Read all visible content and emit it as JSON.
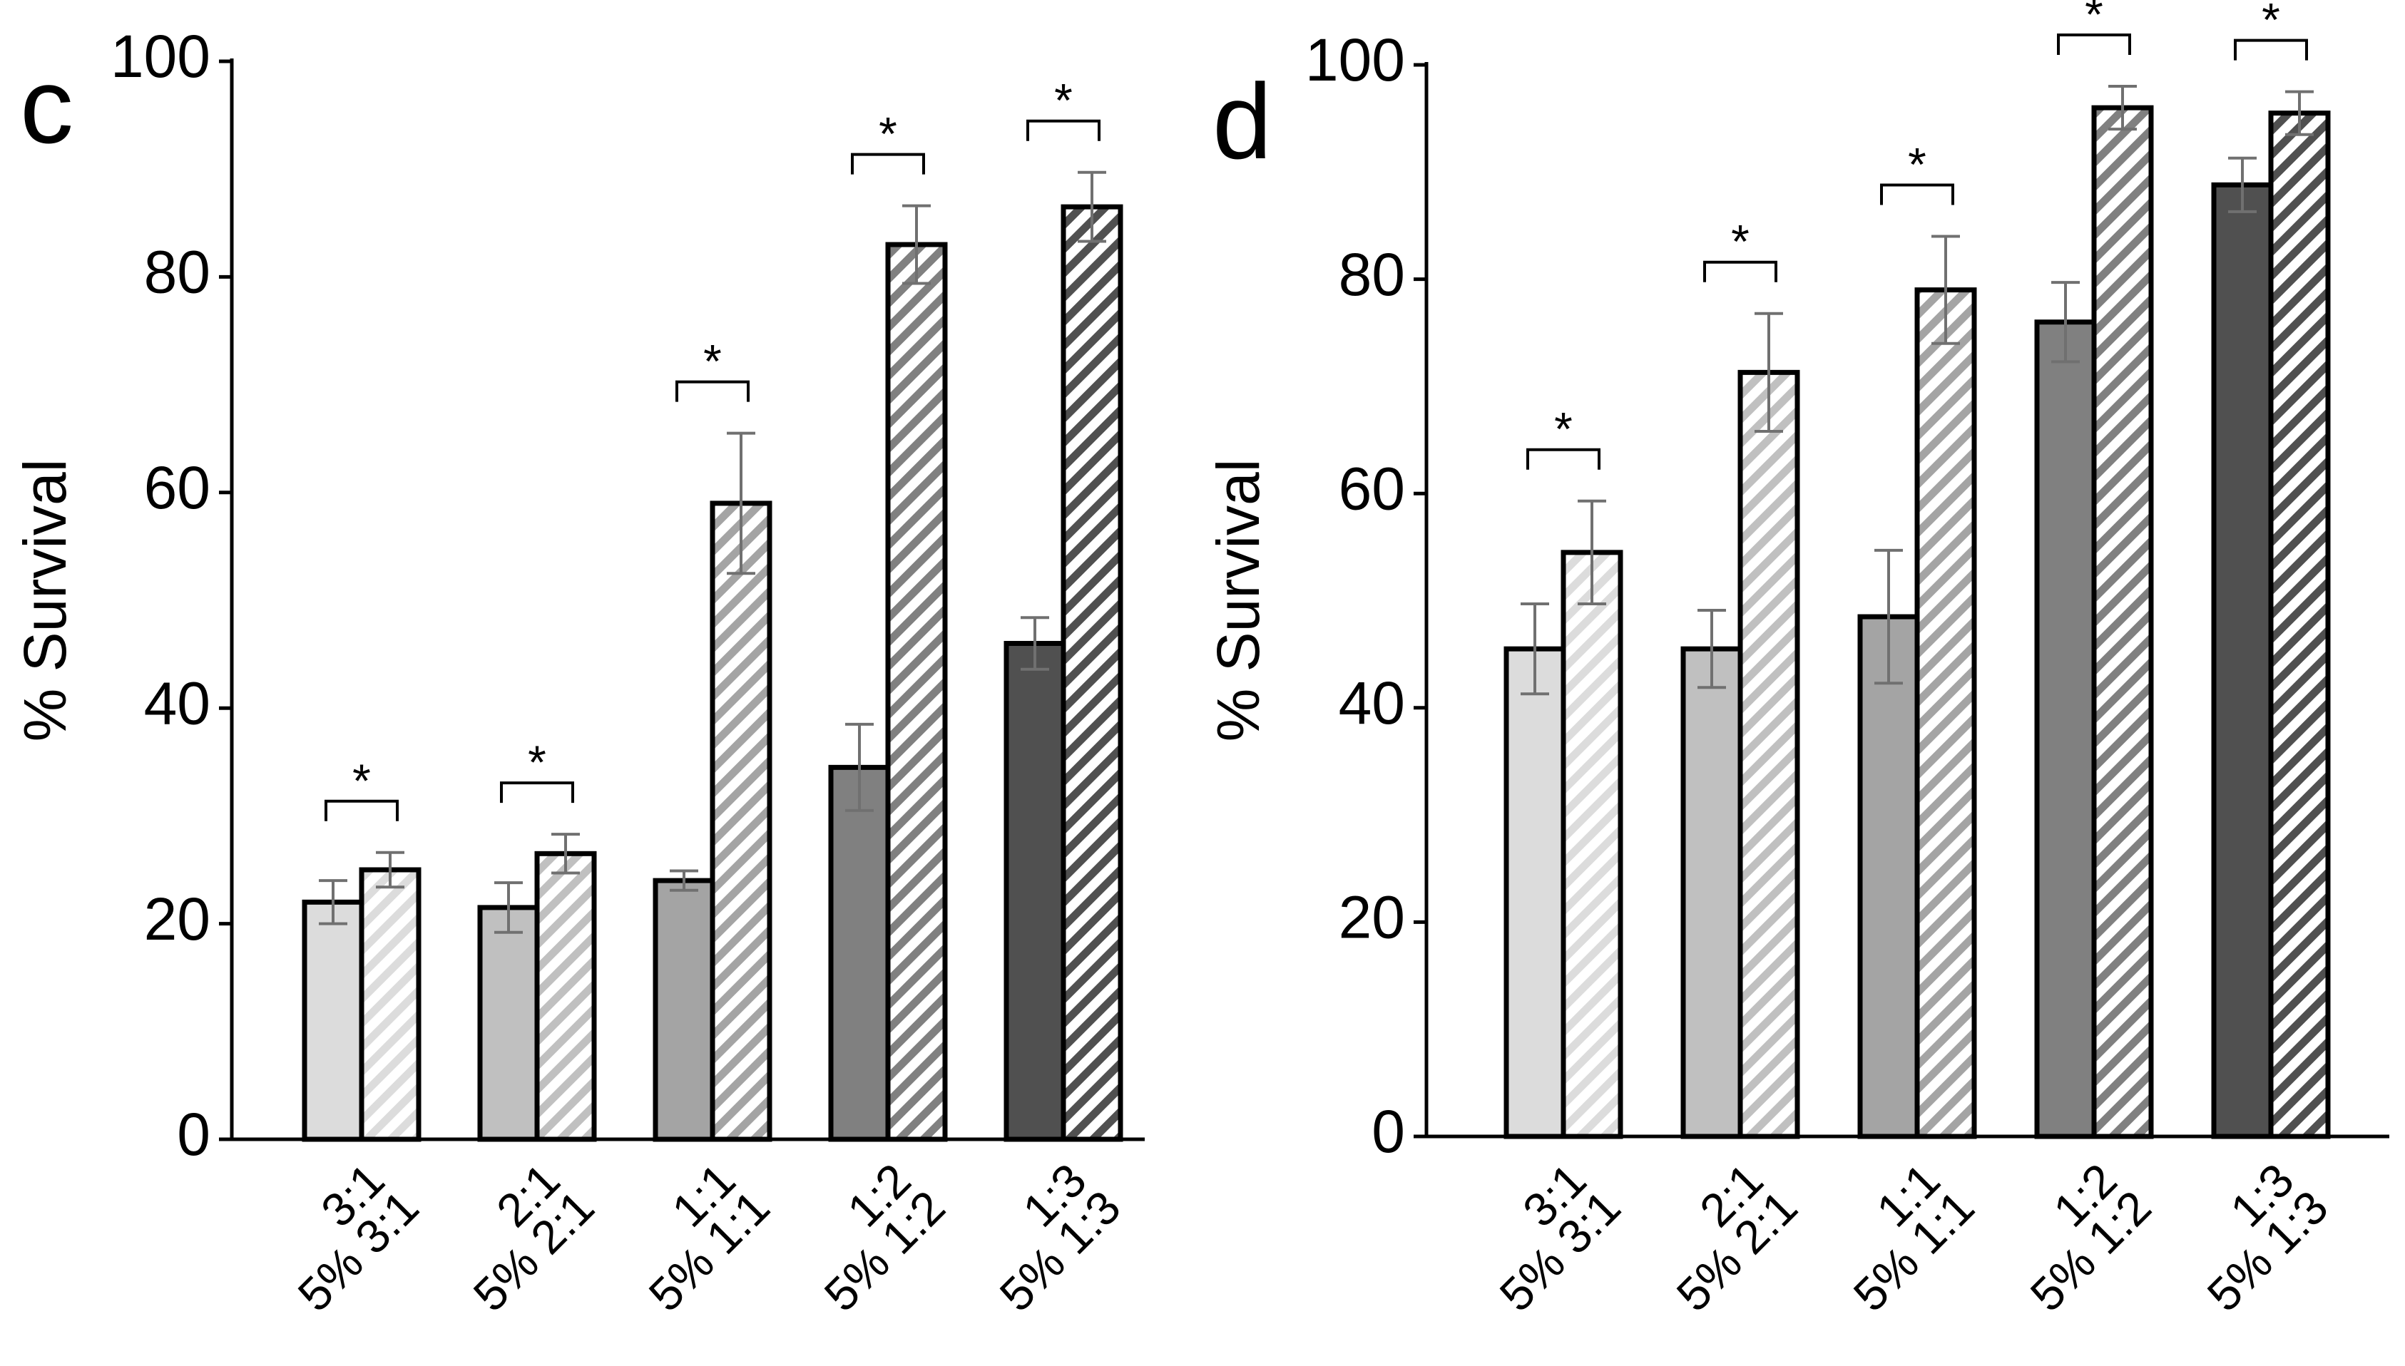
{
  "colors": {
    "c1": "#dcdcdc",
    "c2": "#c0c0c0",
    "c3": "#a4a4a4",
    "c4": "#808080",
    "c5": "#505050",
    "error": "#707070",
    "axis": "#000000"
  },
  "chart_data": [
    {
      "panel_label": "c",
      "type": "bar",
      "ylabel": "% Survival",
      "ylim": [
        0,
        100
      ],
      "yticks": [
        0,
        20,
        40,
        60,
        80,
        100
      ],
      "ytick_labels": [
        "0",
        "20",
        "40",
        "60",
        "80",
        "100"
      ],
      "groups": [
        {
          "name": "3:1",
          "color": "c1",
          "solid": {
            "label": "3:1",
            "value": 22,
            "error": 2
          },
          "hatched": {
            "label": "5% 3:1",
            "value": 25,
            "error": 1.6
          },
          "sig": "*"
        },
        {
          "name": "2:1",
          "color": "c2",
          "solid": {
            "label": "2:1",
            "value": 21.5,
            "error": 2.3
          },
          "hatched": {
            "label": "5% 2:1",
            "value": 26.5,
            "error": 1.8
          },
          "sig": "*"
        },
        {
          "name": "1:1",
          "color": "c3",
          "solid": {
            "label": "1:1",
            "value": 24,
            "error": 0.9
          },
          "hatched": {
            "label": "5% 1:1",
            "value": 59,
            "error": 6.5
          },
          "sig": "*"
        },
        {
          "name": "1:2",
          "color": "c4",
          "solid": {
            "label": "1:2",
            "value": 34.5,
            "error": 4
          },
          "hatched": {
            "label": "5% 1:2",
            "value": 83,
            "error": 3.6
          },
          "sig": "*"
        },
        {
          "name": "1:3",
          "color": "c5",
          "solid": {
            "label": "1:3",
            "value": 46,
            "error": 2.4
          },
          "hatched": {
            "label": "5% 1:3",
            "value": 86.5,
            "error": 3.2
          },
          "sig": "*"
        }
      ]
    },
    {
      "panel_label": "d",
      "type": "bar",
      "ylabel": "% Survival",
      "ylim": [
        0,
        100
      ],
      "yticks": [
        0,
        20,
        40,
        60,
        80,
        100
      ],
      "ytick_labels": [
        "0",
        "20",
        "40",
        "60",
        "80",
        "100"
      ],
      "groups": [
        {
          "name": "3:1",
          "color": "c1",
          "solid": {
            "label": "3:1",
            "value": 45.5,
            "error": 4.2
          },
          "hatched": {
            "label": "5% 3:1",
            "value": 54.5,
            "error": 4.8
          },
          "sig": "*"
        },
        {
          "name": "2:1",
          "color": "c2",
          "solid": {
            "label": "2:1",
            "value": 45.5,
            "error": 3.6
          },
          "hatched": {
            "label": "5% 2:1",
            "value": 71.3,
            "error": 5.5
          },
          "sig": "*"
        },
        {
          "name": "1:1",
          "color": "c3",
          "solid": {
            "label": "1:1",
            "value": 48.5,
            "error": 6.2
          },
          "hatched": {
            "label": "5% 1:1",
            "value": 79,
            "error": 5
          },
          "sig": "*"
        },
        {
          "name": "1:2",
          "color": "c4",
          "solid": {
            "label": "1:2",
            "value": 76,
            "error": 3.7
          },
          "hatched": {
            "label": "5% 1:2",
            "value": 96,
            "error": 2
          },
          "sig": "*"
        },
        {
          "name": "1:3",
          "color": "c5",
          "solid": {
            "label": "1:3",
            "value": 88.8,
            "error": 2.5
          },
          "hatched": {
            "label": "5% 1:3",
            "value": 95.5,
            "error": 2
          },
          "sig": "*"
        }
      ]
    }
  ]
}
